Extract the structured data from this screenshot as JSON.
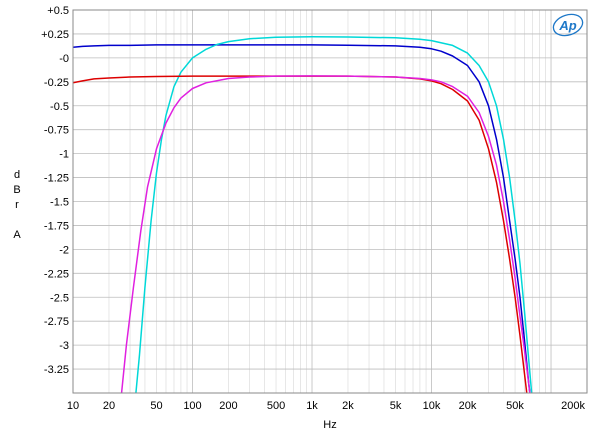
{
  "chart_data": {
    "type": "line",
    "xlabel": "Hz",
    "ylabel": [
      "d",
      "B",
      "r",
      "",
      "A"
    ],
    "x_scale": "log",
    "xlim": [
      10,
      200000
    ],
    "ylim": [
      -3.5,
      0.5
    ],
    "grid": true,
    "x_ticks": [
      {
        "v": 10,
        "label": "10"
      },
      {
        "v": 20,
        "label": "20"
      },
      {
        "v": 50,
        "label": "50"
      },
      {
        "v": 100,
        "label": "100"
      },
      {
        "v": 200,
        "label": "200"
      },
      {
        "v": 500,
        "label": "500"
      },
      {
        "v": 1000,
        "label": "1k"
      },
      {
        "v": 2000,
        "label": "2k"
      },
      {
        "v": 5000,
        "label": "5k"
      },
      {
        "v": 10000,
        "label": "10k"
      },
      {
        "v": 20000,
        "label": "20k"
      },
      {
        "v": 50000,
        "label": "50k"
      },
      {
        "v": 200000,
        "label": "200k"
      }
    ],
    "y_ticks": [
      {
        "v": 0.5,
        "label": "+0.5"
      },
      {
        "v": 0.25,
        "label": "+0.25"
      },
      {
        "v": 0,
        "label": "-0"
      },
      {
        "v": -0.25,
        "label": "-0.25"
      },
      {
        "v": -0.5,
        "label": "-0.5"
      },
      {
        "v": -0.75,
        "label": "-0.75"
      },
      {
        "v": -1,
        "label": "-1"
      },
      {
        "v": -1.25,
        "label": "-1.25"
      },
      {
        "v": -1.5,
        "label": "-1.5"
      },
      {
        "v": -1.75,
        "label": "-1.75"
      },
      {
        "v": -2,
        "label": "-2"
      },
      {
        "v": -2.25,
        "label": "-2.25"
      },
      {
        "v": -2.5,
        "label": "-2.5"
      },
      {
        "v": -2.75,
        "label": "-2.75"
      },
      {
        "v": -3,
        "label": "-3"
      },
      {
        "v": -3.25,
        "label": "-3.25"
      }
    ],
    "series": [
      {
        "color": "#0000cc",
        "points": [
          [
            10,
            0.11
          ],
          [
            12,
            0.12
          ],
          [
            15,
            0.125
          ],
          [
            20,
            0.13
          ],
          [
            30,
            0.13
          ],
          [
            50,
            0.135
          ],
          [
            100,
            0.135
          ],
          [
            200,
            0.135
          ],
          [
            500,
            0.135
          ],
          [
            1000,
            0.135
          ],
          [
            2000,
            0.132
          ],
          [
            5000,
            0.125
          ],
          [
            8000,
            0.11
          ],
          [
            10000,
            0.095
          ],
          [
            12000,
            0.07
          ],
          [
            15000,
            0.02
          ],
          [
            20000,
            -0.08
          ],
          [
            25000,
            -0.25
          ],
          [
            30000,
            -0.5
          ],
          [
            35000,
            -0.85
          ],
          [
            40000,
            -1.25
          ],
          [
            45000,
            -1.7
          ],
          [
            50000,
            -2.1
          ],
          [
            55000,
            -2.5
          ],
          [
            60000,
            -2.95
          ],
          [
            65000,
            -3.4
          ],
          [
            68000,
            -3.6
          ]
        ]
      },
      {
        "color": "#00d8d8",
        "points": [
          [
            33,
            -3.6
          ],
          [
            36,
            -3.1
          ],
          [
            40,
            -2.4
          ],
          [
            45,
            -1.7
          ],
          [
            50,
            -1.2
          ],
          [
            55,
            -0.85
          ],
          [
            60,
            -0.6
          ],
          [
            70,
            -0.3
          ],
          [
            80,
            -0.15
          ],
          [
            100,
            0.0
          ],
          [
            130,
            0.09
          ],
          [
            160,
            0.14
          ],
          [
            200,
            0.17
          ],
          [
            300,
            0.2
          ],
          [
            500,
            0.215
          ],
          [
            1000,
            0.22
          ],
          [
            2000,
            0.218
          ],
          [
            5000,
            0.21
          ],
          [
            8000,
            0.195
          ],
          [
            10000,
            0.18
          ],
          [
            15000,
            0.13
          ],
          [
            20000,
            0.05
          ],
          [
            25000,
            -0.08
          ],
          [
            30000,
            -0.25
          ],
          [
            35000,
            -0.5
          ],
          [
            40000,
            -0.85
          ],
          [
            45000,
            -1.25
          ],
          [
            50000,
            -1.7
          ],
          [
            55000,
            -2.15
          ],
          [
            60000,
            -2.65
          ],
          [
            65000,
            -3.15
          ],
          [
            70000,
            -3.6
          ]
        ]
      },
      {
        "color": "#dd0000",
        "points": [
          [
            10,
            -0.26
          ],
          [
            12,
            -0.24
          ],
          [
            15,
            -0.22
          ],
          [
            20,
            -0.21
          ],
          [
            30,
            -0.2
          ],
          [
            50,
            -0.195
          ],
          [
            100,
            -0.19
          ],
          [
            200,
            -0.19
          ],
          [
            500,
            -0.19
          ],
          [
            1000,
            -0.19
          ],
          [
            2000,
            -0.19
          ],
          [
            5000,
            -0.2
          ],
          [
            8000,
            -0.22
          ],
          [
            10000,
            -0.24
          ],
          [
            12000,
            -0.27
          ],
          [
            15000,
            -0.33
          ],
          [
            20000,
            -0.45
          ],
          [
            25000,
            -0.65
          ],
          [
            30000,
            -0.95
          ],
          [
            35000,
            -1.3
          ],
          [
            40000,
            -1.7
          ],
          [
            45000,
            -2.1
          ],
          [
            50000,
            -2.5
          ],
          [
            55000,
            -2.9
          ],
          [
            60000,
            -3.3
          ],
          [
            64000,
            -3.6
          ]
        ]
      },
      {
        "color": "#e020e0",
        "points": [
          [
            25,
            -3.6
          ],
          [
            28,
            -3.0
          ],
          [
            32,
            -2.4
          ],
          [
            37,
            -1.8
          ],
          [
            42,
            -1.35
          ],
          [
            50,
            -0.95
          ],
          [
            60,
            -0.68
          ],
          [
            70,
            -0.52
          ],
          [
            80,
            -0.42
          ],
          [
            100,
            -0.32
          ],
          [
            130,
            -0.26
          ],
          [
            200,
            -0.215
          ],
          [
            300,
            -0.2
          ],
          [
            500,
            -0.19
          ],
          [
            1000,
            -0.188
          ],
          [
            2000,
            -0.19
          ],
          [
            5000,
            -0.2
          ],
          [
            8000,
            -0.215
          ],
          [
            10000,
            -0.23
          ],
          [
            12000,
            -0.25
          ],
          [
            15000,
            -0.3
          ],
          [
            20000,
            -0.4
          ],
          [
            25000,
            -0.57
          ],
          [
            30000,
            -0.82
          ],
          [
            35000,
            -1.12
          ],
          [
            40000,
            -1.5
          ],
          [
            45000,
            -1.9
          ],
          [
            50000,
            -2.3
          ],
          [
            55000,
            -2.7
          ],
          [
            60000,
            -3.05
          ],
          [
            65000,
            -3.4
          ],
          [
            68000,
            -3.6
          ]
        ]
      }
    ]
  },
  "logo": {
    "text": "Ap",
    "color": "#1e78c8"
  }
}
